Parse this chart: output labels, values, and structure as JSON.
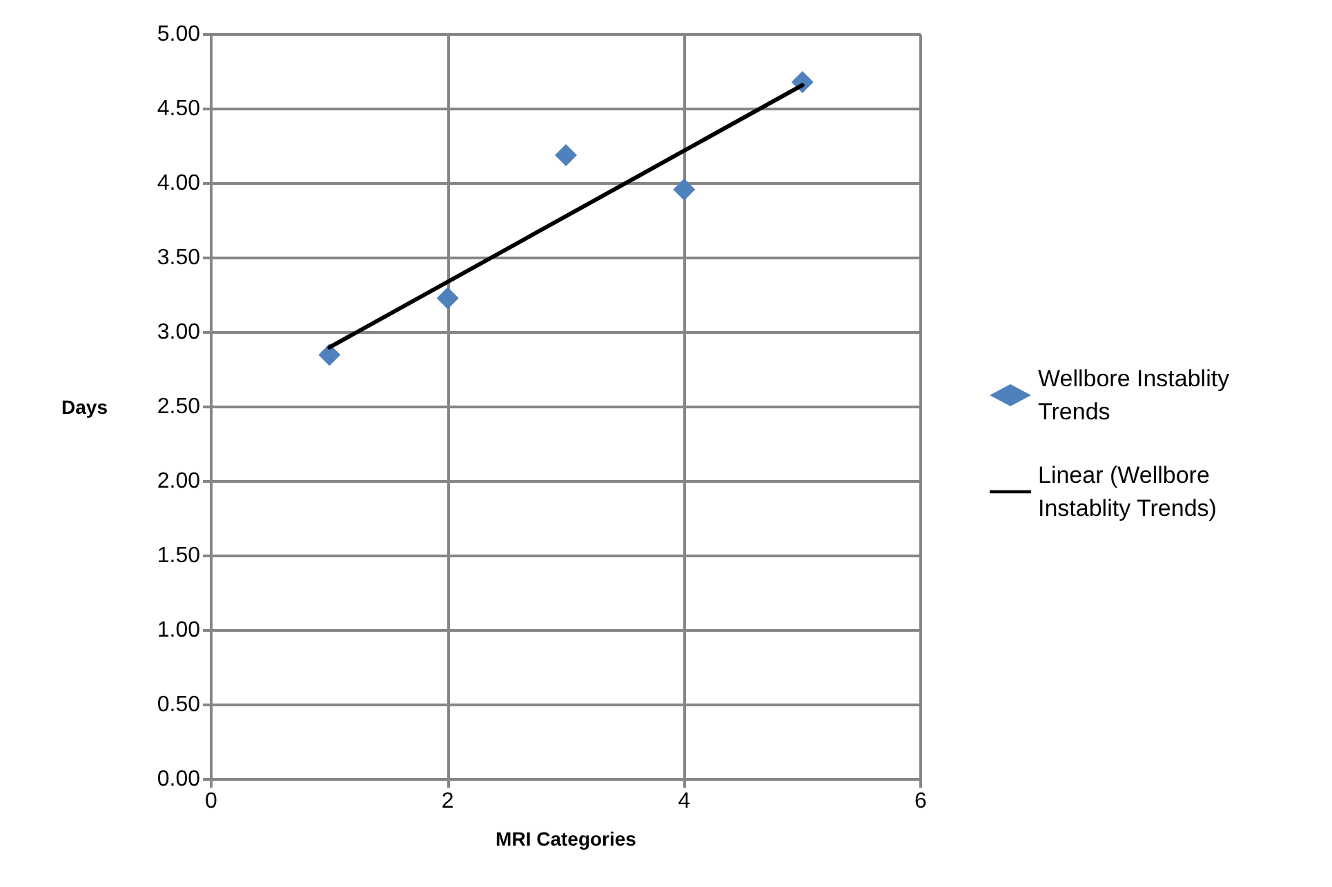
{
  "chart_data": {
    "type": "scatter",
    "xlabel": "MRI Categories",
    "ylabel": "Days",
    "xlim": [
      0,
      6
    ],
    "xticks": [
      0,
      2,
      4,
      6
    ],
    "ylim": [
      0,
      5
    ],
    "yticks": [
      {
        "value": 0,
        "label": "0.00"
      },
      {
        "value": 0.5,
        "label": "0.50"
      },
      {
        "value": 1,
        "label": "1.00"
      },
      {
        "value": 1.5,
        "label": "1.50"
      },
      {
        "value": 2,
        "label": "2.00"
      },
      {
        "value": 2.5,
        "label": "2.50"
      },
      {
        "value": 3,
        "label": "3.00"
      },
      {
        "value": 3.5,
        "label": "3.50"
      },
      {
        "value": 4,
        "label": "4.00"
      },
      {
        "value": 4.5,
        "label": "4.50"
      },
      {
        "value": 5,
        "label": "5.00"
      }
    ],
    "grid": true,
    "legend": "right",
    "marker": "diamond",
    "series": [
      {
        "name": "Wellbore Instablity Trends",
        "color": "#4f81bd",
        "x": [
          1,
          2,
          3,
          4,
          5
        ],
        "values": [
          2.85,
          3.23,
          4.19,
          3.96,
          4.68
        ]
      },
      {
        "name": "Linear (Wellbore Instablity Trends)",
        "type": "line",
        "color": "#000000",
        "line_style": "solid",
        "marker": "none",
        "x": [
          1,
          5
        ],
        "values": [
          2.9,
          4.66
        ]
      }
    ]
  }
}
